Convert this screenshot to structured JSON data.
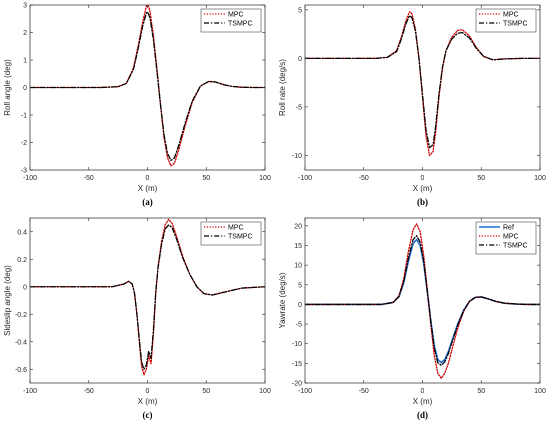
{
  "chart_data": [
    {
      "type": "line",
      "panel_label": "(a)",
      "xlabel": "X (m)",
      "ylabel": "Roll angle (deg)",
      "xlim": [
        -100,
        100
      ],
      "ylim": [
        -3,
        3
      ],
      "xticks": [
        -100,
        -50,
        0,
        50,
        100
      ],
      "yticks": [
        -3,
        -2,
        -1,
        0,
        1,
        2,
        3
      ],
      "legend_position": "top-right",
      "series": [
        {
          "name": "MPC",
          "color": "#cc0000",
          "style": "dotted",
          "x": [
            -100,
            -40,
            -25,
            -18,
            -12,
            -8,
            -4,
            -1,
            0,
            2,
            5,
            8,
            11,
            14,
            17,
            20,
            23,
            27,
            32,
            38,
            45,
            52,
            58,
            65,
            72,
            80,
            90,
            100
          ],
          "y": [
            0,
            0,
            0.03,
            0.15,
            0.7,
            1.5,
            2.4,
            2.95,
            3.05,
            2.8,
            1.9,
            0.7,
            -0.6,
            -1.8,
            -2.55,
            -2.85,
            -2.75,
            -2.2,
            -1.4,
            -0.55,
            0.05,
            0.22,
            0.2,
            0.1,
            0.04,
            0.01,
            0,
            0
          ]
        },
        {
          "name": "TSMPC",
          "color": "#000000",
          "style": "dashdot",
          "x": [
            -100,
            -40,
            -25,
            -18,
            -12,
            -8,
            -4,
            -1,
            0,
            2,
            5,
            8,
            11,
            14,
            17,
            20,
            23,
            27,
            32,
            38,
            45,
            52,
            58,
            65,
            72,
            80,
            90,
            100
          ],
          "y": [
            0,
            0,
            0.03,
            0.15,
            0.65,
            1.4,
            2.25,
            2.7,
            2.75,
            2.55,
            1.75,
            0.6,
            -0.6,
            -1.7,
            -2.4,
            -2.65,
            -2.55,
            -2.05,
            -1.3,
            -0.5,
            0.05,
            0.22,
            0.2,
            0.1,
            0.04,
            0.01,
            0,
            0
          ]
        }
      ]
    },
    {
      "type": "line",
      "panel_label": "(b)",
      "xlabel": "X (m)",
      "ylabel": "Roll rate (deg/s)",
      "xlim": [
        -100,
        100
      ],
      "ylim": [
        -11.5,
        5.5
      ],
      "xticks": [
        -100,
        -50,
        0,
        50,
        100
      ],
      "yticks": [
        -10,
        -5,
        0,
        5
      ],
      "legend_position": "top-right",
      "series": [
        {
          "name": "MPC",
          "color": "#cc0000",
          "style": "dotted",
          "x": [
            -100,
            -40,
            -30,
            -22,
            -18,
            -14,
            -11,
            -9,
            -6,
            -3,
            0,
            3,
            6,
            9,
            11,
            14,
            17,
            20,
            25,
            30,
            34,
            40,
            46,
            52,
            60,
            70,
            85,
            100
          ],
          "y": [
            0,
            0,
            0.1,
            0.8,
            2.2,
            3.9,
            4.8,
            4.6,
            3.0,
            0,
            -4.0,
            -8.0,
            -10.0,
            -9.6,
            -7.8,
            -4.0,
            -1.0,
            0.8,
            2.2,
            2.9,
            2.95,
            2.3,
            1.1,
            0.2,
            -0.15,
            -0.05,
            0,
            0
          ]
        },
        {
          "name": "TSMPC",
          "color": "#000000",
          "style": "dashdot",
          "x": [
            -100,
            -40,
            -30,
            -22,
            -18,
            -14,
            -11,
            -9,
            -6,
            -3,
            0,
            3,
            6,
            9,
            11,
            14,
            17,
            20,
            25,
            30,
            34,
            40,
            46,
            52,
            60,
            70,
            85,
            100
          ],
          "y": [
            0,
            0,
            0.1,
            0.7,
            2.0,
            3.6,
            4.4,
            4.2,
            2.8,
            0,
            -3.7,
            -7.4,
            -9.2,
            -8.9,
            -7.2,
            -3.7,
            -0.9,
            0.8,
            2.0,
            2.6,
            2.65,
            2.1,
            1.0,
            0.2,
            -0.15,
            -0.05,
            0,
            0
          ]
        }
      ]
    },
    {
      "type": "line",
      "panel_label": "(c)",
      "xlabel": "X (m)",
      "ylabel": "Sideslip angle (deg)",
      "xlim": [
        -100,
        100
      ],
      "ylim": [
        -0.7,
        0.5
      ],
      "xticks": [
        -100,
        -50,
        0,
        50,
        100
      ],
      "yticks": [
        -0.6,
        -0.4,
        -0.2,
        0,
        0.2,
        0.4
      ],
      "legend_position": "top-right",
      "series": [
        {
          "name": "MPC",
          "color": "#cc0000",
          "style": "dotted",
          "x": [
            -100,
            -30,
            -20,
            -16,
            -13,
            -11,
            -9,
            -7,
            -5,
            -3,
            -1,
            1,
            3,
            5,
            7,
            9,
            12,
            15,
            18,
            21,
            25,
            30,
            36,
            42,
            48,
            55,
            65,
            80,
            100
          ],
          "y": [
            0,
            0,
            0.02,
            0.04,
            0.02,
            -0.05,
            -0.2,
            -0.4,
            -0.58,
            -0.64,
            -0.6,
            -0.5,
            -0.56,
            -0.35,
            -0.05,
            0.15,
            0.33,
            0.45,
            0.49,
            0.46,
            0.36,
            0.22,
            0.09,
            0.0,
            -0.05,
            -0.06,
            -0.04,
            -0.01,
            0
          ]
        },
        {
          "name": "TSMPC",
          "color": "#000000",
          "style": "dashdot",
          "x": [
            -100,
            -30,
            -20,
            -16,
            -13,
            -11,
            -9,
            -7,
            -5,
            -3,
            -1,
            1,
            3,
            5,
            7,
            9,
            12,
            15,
            18,
            21,
            25,
            30,
            36,
            42,
            48,
            55,
            65,
            80,
            100
          ],
          "y": [
            0,
            0,
            0.02,
            0.04,
            0.02,
            -0.05,
            -0.2,
            -0.38,
            -0.55,
            -0.6,
            -0.57,
            -0.47,
            -0.52,
            -0.32,
            -0.04,
            0.14,
            0.31,
            0.42,
            0.45,
            0.43,
            0.34,
            0.21,
            0.09,
            0.0,
            -0.05,
            -0.06,
            -0.04,
            -0.01,
            0
          ]
        }
      ]
    },
    {
      "type": "line",
      "panel_label": "(d)",
      "xlabel": "X (m)",
      "ylabel": "Yawrate (deg/s)",
      "xlim": [
        -100,
        100
      ],
      "ylim": [
        -20,
        22
      ],
      "xticks": [
        -100,
        -50,
        0,
        50,
        100
      ],
      "yticks": [
        -20,
        -15,
        -10,
        -5,
        0,
        5,
        10,
        15,
        20
      ],
      "legend_position": "top-right",
      "series": [
        {
          "name": "Ref",
          "color": "#1f6fd1",
          "style": "solid",
          "x": [
            -100,
            -35,
            -25,
            -20,
            -16,
            -12,
            -8,
            -5,
            -2,
            1,
            4,
            7,
            10,
            13,
            16,
            19,
            22,
            26,
            30,
            35,
            40,
            45,
            50,
            55,
            62,
            70,
            80,
            90,
            100
          ],
          "y": [
            0,
            0,
            0.5,
            2.0,
            5.5,
            11.0,
            15.5,
            16.5,
            15.0,
            10.5,
            3.5,
            -4.0,
            -10.5,
            -14.0,
            -14.8,
            -14.0,
            -12.0,
            -8.5,
            -5.0,
            -1.5,
            0.8,
            1.8,
            1.9,
            1.5,
            0.8,
            0.3,
            0.1,
            0,
            0
          ]
        },
        {
          "name": "MPC",
          "color": "#cc0000",
          "style": "dotted",
          "x": [
            -100,
            -35,
            -25,
            -20,
            -16,
            -12,
            -8,
            -5,
            -2,
            1,
            4,
            7,
            10,
            13,
            16,
            19,
            22,
            26,
            30,
            35,
            40,
            45,
            50,
            55,
            62,
            70,
            80,
            90,
            100
          ],
          "y": [
            0,
            0,
            0.5,
            2.2,
            6.5,
            13.5,
            19.0,
            20.5,
            18.5,
            12.5,
            4.0,
            -5.0,
            -13.0,
            -17.5,
            -18.8,
            -17.5,
            -15.0,
            -10.5,
            -6.0,
            -1.8,
            0.8,
            1.8,
            1.9,
            1.5,
            0.8,
            0.3,
            0.1,
            0,
            0
          ]
        },
        {
          "name": "TSMPC",
          "color": "#000000",
          "style": "dashdot",
          "x": [
            -100,
            -35,
            -25,
            -20,
            -16,
            -12,
            -8,
            -5,
            -2,
            1,
            4,
            7,
            10,
            13,
            16,
            19,
            22,
            26,
            30,
            35,
            40,
            45,
            50,
            55,
            62,
            70,
            80,
            90,
            100
          ],
          "y": [
            0,
            0,
            0.5,
            2.0,
            5.8,
            11.8,
            16.5,
            17.5,
            15.8,
            11.0,
            3.6,
            -4.2,
            -11.0,
            -14.8,
            -15.5,
            -14.6,
            -12.5,
            -8.8,
            -5.2,
            -1.6,
            0.8,
            1.8,
            1.9,
            1.5,
            0.8,
            0.3,
            0.1,
            0,
            0
          ]
        }
      ]
    }
  ]
}
